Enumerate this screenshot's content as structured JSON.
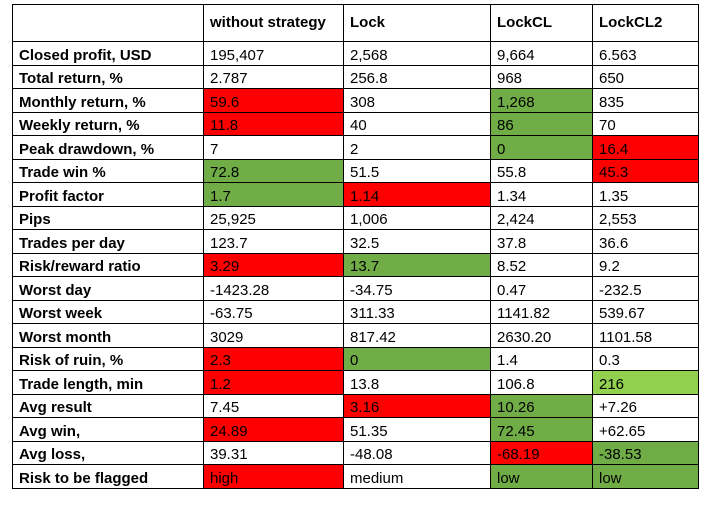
{
  "table": {
    "headers": [
      "",
      "without strategy",
      "Lock",
      "LockCL",
      "LockCL2"
    ],
    "rows": [
      {
        "label": "Closed profit, USD",
        "cells": [
          {
            "v": "195,407",
            "h": ""
          },
          {
            "v": "2,568",
            "h": ""
          },
          {
            "v": "9,664",
            "h": ""
          },
          {
            "v": "6.563",
            "h": ""
          }
        ]
      },
      {
        "label": "Total return, %",
        "cells": [
          {
            "v": "2.787",
            "h": ""
          },
          {
            "v": "256.8",
            "h": ""
          },
          {
            "v": "968",
            "h": ""
          },
          {
            "v": "650",
            "h": ""
          }
        ]
      },
      {
        "label": "Monthly return, %",
        "cells": [
          {
            "v": "59.6",
            "h": "red"
          },
          {
            "v": "308",
            "h": ""
          },
          {
            "v": "1,268",
            "h": "green"
          },
          {
            "v": "835",
            "h": ""
          }
        ]
      },
      {
        "label": "Weekly return, %",
        "cells": [
          {
            "v": "11.8",
            "h": "red"
          },
          {
            "v": "40",
            "h": ""
          },
          {
            "v": "86",
            "h": "green"
          },
          {
            "v": "70",
            "h": ""
          }
        ]
      },
      {
        "label": "Peak drawdown, %",
        "cells": [
          {
            "v": "7",
            "h": ""
          },
          {
            "v": "2",
            "h": ""
          },
          {
            "v": "0",
            "h": "green"
          },
          {
            "v": "16.4",
            "h": "red"
          }
        ]
      },
      {
        "label": "Trade win %",
        "cells": [
          {
            "v": "72.8",
            "h": "green"
          },
          {
            "v": "51.5",
            "h": ""
          },
          {
            "v": "55.8",
            "h": ""
          },
          {
            "v": "45.3",
            "h": "red"
          }
        ]
      },
      {
        "label": "Profit factor",
        "cells": [
          {
            "v": "1.7",
            "h": "green"
          },
          {
            "v": "1.14",
            "h": "red"
          },
          {
            "v": "1.34",
            "h": ""
          },
          {
            "v": "1.35",
            "h": ""
          }
        ]
      },
      {
        "label": "Pips",
        "cells": [
          {
            "v": "25,925",
            "h": ""
          },
          {
            "v": "1,006",
            "h": ""
          },
          {
            "v": "2,424",
            "h": ""
          },
          {
            "v": "2,553",
            "h": ""
          }
        ]
      },
      {
        "label": "Trades per day",
        "cells": [
          {
            "v": "123.7",
            "h": ""
          },
          {
            "v": "32.5",
            "h": ""
          },
          {
            "v": "37.8",
            "h": ""
          },
          {
            "v": "36.6",
            "h": ""
          }
        ]
      },
      {
        "label": "Risk/reward ratio",
        "cells": [
          {
            "v": "3.29",
            "h": "red"
          },
          {
            "v": "13.7",
            "h": "green"
          },
          {
            "v": "8.52",
            "h": ""
          },
          {
            "v": "9.2",
            "h": ""
          }
        ]
      },
      {
        "label": "Worst day",
        "cells": [
          {
            "v": "-1423.28",
            "h": ""
          },
          {
            "v": "-34.75",
            "h": ""
          },
          {
            "v": "0.47",
            "h": ""
          },
          {
            "v": "-232.5",
            "h": ""
          }
        ]
      },
      {
        "label": "Worst week",
        "cells": [
          {
            "v": "-63.75",
            "h": ""
          },
          {
            "v": "311.33",
            "h": ""
          },
          {
            "v": "1141.82",
            "h": ""
          },
          {
            "v": "539.67",
            "h": ""
          }
        ]
      },
      {
        "label": "Worst month",
        "cells": [
          {
            "v": "3029",
            "h": ""
          },
          {
            "v": "817.42",
            "h": ""
          },
          {
            "v": "2630.20",
            "h": ""
          },
          {
            "v": "1101.58",
            "h": ""
          }
        ]
      },
      {
        "label": "Risk of ruin, %",
        "cells": [
          {
            "v": "2.3",
            "h": "red"
          },
          {
            "v": "0",
            "h": "green"
          },
          {
            "v": "1.4",
            "h": ""
          },
          {
            "v": "0.3",
            "h": ""
          }
        ]
      },
      {
        "label": "Trade length, min",
        "cells": [
          {
            "v": "1.2",
            "h": "red"
          },
          {
            "v": "13.8",
            "h": ""
          },
          {
            "v": "106.8",
            "h": ""
          },
          {
            "v": "216",
            "h": "lightgreen"
          }
        ]
      },
      {
        "label": "Avg result",
        "cells": [
          {
            "v": "7.45",
            "h": ""
          },
          {
            "v": "3.16",
            "h": "red"
          },
          {
            "v": "10.26",
            "h": "green"
          },
          {
            "v": "+7.26",
            "h": ""
          }
        ]
      },
      {
        "label": "Avg win,",
        "cells": [
          {
            "v": "24.89",
            "h": "red"
          },
          {
            "v": "51.35",
            "h": ""
          },
          {
            "v": "72.45",
            "h": "green"
          },
          {
            "v": "+62.65",
            "h": ""
          }
        ]
      },
      {
        "label": "Avg loss,",
        "cells": [
          {
            "v": "39.31",
            "h": ""
          },
          {
            "v": "-48.08",
            "h": ""
          },
          {
            "v": "-68.19",
            "h": "red"
          },
          {
            "v": "-38.53",
            "h": "green"
          }
        ]
      },
      {
        "label": "Risk to be flagged",
        "cells": [
          {
            "v": "high",
            "h": "red"
          },
          {
            "v": "medium",
            "h": ""
          },
          {
            "v": "low",
            "h": "green"
          },
          {
            "v": "low",
            "h": "green"
          }
        ]
      }
    ]
  },
  "highlight_colors": {
    "red": "#ff0000",
    "green": "#70ad47",
    "lightgreen": "#92d050"
  }
}
